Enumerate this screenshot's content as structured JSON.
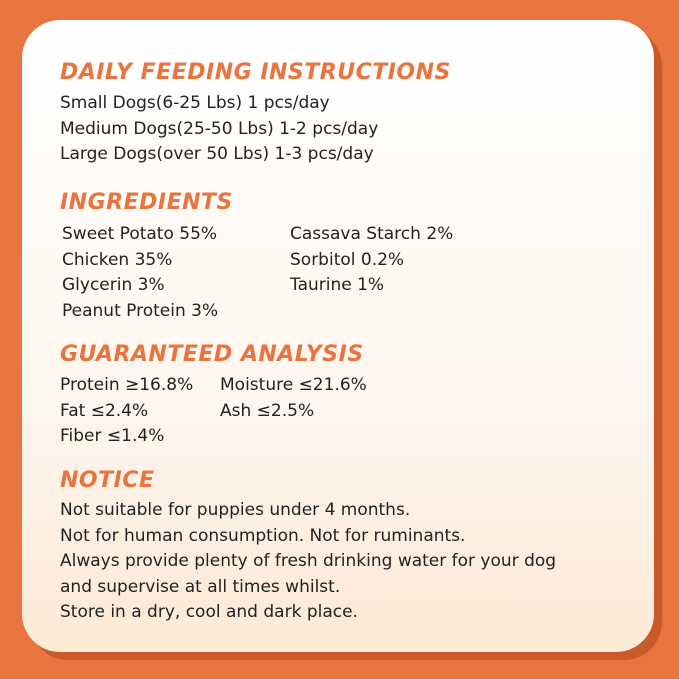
{
  "feeding": {
    "title": "DAILY FEEDING INSTRUCTIONS",
    "lines": [
      "Small Dogs(6-25 Lbs) 1 pcs/day",
      "Medium Dogs(25-50 Lbs) 1-2 pcs/day",
      "Large Dogs(over 50 Lbs) 1-3 pcs/day"
    ]
  },
  "ingredients": {
    "title": "INGREDIENTS",
    "left": [
      "Sweet Potato 55%",
      "Chicken 35%",
      "Glycerin 3%",
      "Peanut Protein 3%"
    ],
    "right": [
      "Cassava Starch 2%",
      "Sorbitol 0.2%",
      "Taurine 1%"
    ]
  },
  "analysis": {
    "title": "GUARANTEED ANALYSIS",
    "left": [
      "Protein ≥16.8%",
      "Fat ≤2.4%",
      "Fiber ≤1.4%"
    ],
    "right": [
      "Moisture ≤21.6%",
      "Ash ≤2.5%"
    ]
  },
  "notice": {
    "title": "NOTICE",
    "lines": [
      "Not suitable for puppies under 4 months.",
      "Not for human consumption. Not for ruminants.",
      "Always provide plenty of fresh drinking water for your dog",
      "and supervise at all times whilst.",
      "Store in a dry, cool and dark place."
    ]
  }
}
